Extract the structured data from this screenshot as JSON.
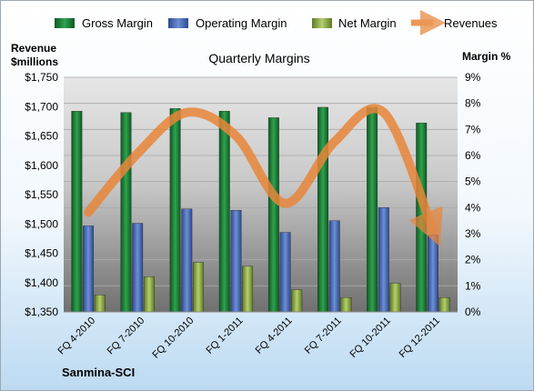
{
  "chart_data": {
    "type": "bar",
    "title": "Quarterly Margins",
    "company": "Sanmina-SCI",
    "left_axis_label": [
      "Revenue",
      "$millions"
    ],
    "right_axis_label": "Margin %",
    "categories": [
      "FQ 4-2010",
      "FQ 7-2010",
      "FQ 10-2010",
      "FQ 1-2011",
      "FQ 4-2011",
      "FQ 7-2011",
      "FQ 10-2011",
      "FQ 12-2011"
    ],
    "left_ylim": [
      1350,
      1750
    ],
    "left_ticks": [
      "$1,350",
      "$1,400",
      "$1,450",
      "$1,500",
      "$1,550",
      "$1,600",
      "$1,650",
      "$1,700",
      "$1,750"
    ],
    "right_ylim": [
      0,
      9
    ],
    "right_ticks": [
      "0%",
      "1%",
      "2%",
      "3%",
      "4%",
      "5%",
      "6%",
      "7%",
      "8%",
      "9%"
    ],
    "series": [
      {
        "name": "Gross Margin",
        "axis": "right",
        "kind": "bar",
        "color": "#1e8a3c",
        "values": [
          7.7,
          7.65,
          7.8,
          7.7,
          7.45,
          7.85,
          7.85,
          7.25
        ]
      },
      {
        "name": "Operating Margin",
        "axis": "right",
        "kind": "bar",
        "color": "#4a6fbd",
        "values": [
          3.3,
          3.4,
          3.95,
          3.9,
          3.05,
          3.5,
          4.0,
          2.95
        ]
      },
      {
        "name": "Net Margin",
        "axis": "right",
        "kind": "bar",
        "color": "#8fb04a",
        "values": [
          0.65,
          1.35,
          1.9,
          1.75,
          0.85,
          0.55,
          1.1,
          0.55
        ]
      },
      {
        "name": "Revenues",
        "axis": "left",
        "kind": "line",
        "color": "#e8863a",
        "values": [
          1520,
          1620,
          1690,
          1650,
          1535,
          1640,
          1690,
          1490
        ]
      }
    ],
    "grid": true,
    "legend_position": "top"
  }
}
